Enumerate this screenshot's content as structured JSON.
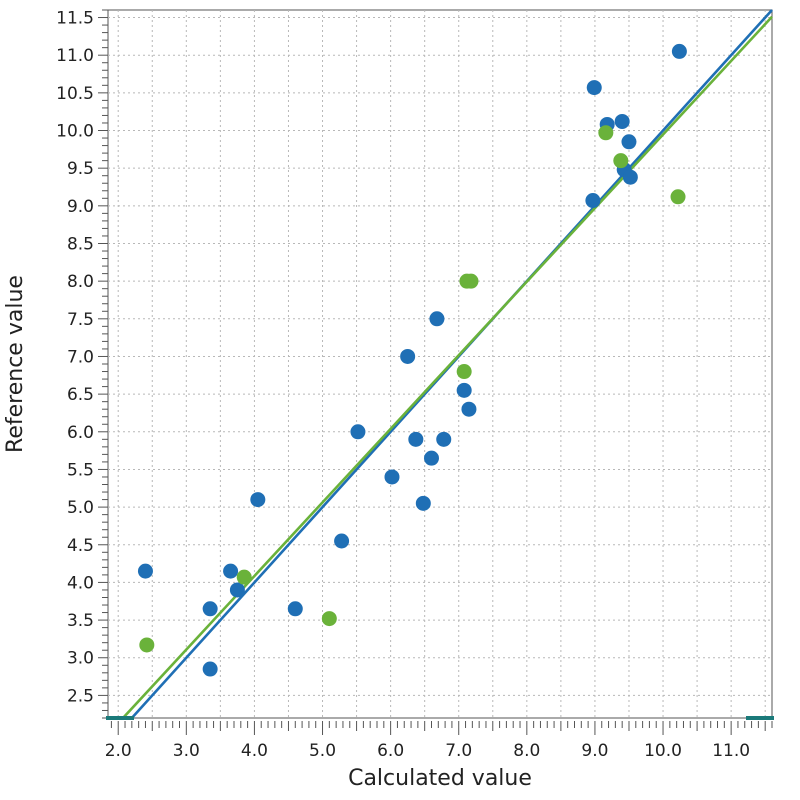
{
  "chart_data": {
    "type": "scatter",
    "title": "",
    "xlabel": "Calculated value",
    "ylabel": "Reference value",
    "xlim": [
      1.85,
      11.6
    ],
    "ylim": [
      2.2,
      11.6
    ],
    "x_ticks": [
      "2.0",
      "3.0",
      "4.0",
      "5.0",
      "6.0",
      "7.0",
      "8.0",
      "9.0",
      "10.0",
      "11.0"
    ],
    "y_ticks": [
      "2.5",
      "3.0",
      "3.5",
      "4.0",
      "4.5",
      "5.0",
      "5.5",
      "6.0",
      "6.5",
      "7.0",
      "7.5",
      "8.0",
      "8.5",
      "9.0",
      "9.5",
      "10.0",
      "10.5",
      "11.0",
      "11.5"
    ],
    "grid": true,
    "series": [
      {
        "color": "#1f6fb5",
        "points": [
          [
            2.4,
            4.15
          ],
          [
            3.35,
            3.65
          ],
          [
            3.35,
            2.85
          ],
          [
            3.65,
            4.15
          ],
          [
            3.75,
            3.9
          ],
          [
            4.05,
            5.1
          ],
          [
            4.6,
            3.65
          ],
          [
            5.28,
            4.55
          ],
          [
            5.52,
            6.0
          ],
          [
            6.02,
            5.4
          ],
          [
            6.25,
            7.0
          ],
          [
            6.37,
            5.9
          ],
          [
            6.48,
            5.05
          ],
          [
            6.6,
            5.65
          ],
          [
            6.68,
            7.5
          ],
          [
            6.78,
            5.9
          ],
          [
            7.08,
            6.55
          ],
          [
            7.15,
            6.3
          ],
          [
            8.97,
            9.07
          ],
          [
            8.99,
            10.57
          ],
          [
            9.18,
            10.08
          ],
          [
            9.4,
            10.12
          ],
          [
            9.43,
            9.48
          ],
          [
            9.5,
            9.85
          ],
          [
            9.52,
            9.38
          ],
          [
            10.24,
            11.05
          ]
        ],
        "fit_line": [
          [
            2.2,
            2.2
          ],
          [
            11.6,
            11.6
          ]
        ]
      },
      {
        "color": "#6ab23a",
        "points": [
          [
            2.42,
            3.17
          ],
          [
            3.85,
            4.07
          ],
          [
            5.1,
            3.52
          ],
          [
            7.08,
            6.8
          ],
          [
            7.12,
            8.0
          ],
          [
            7.18,
            8.0
          ],
          [
            9.16,
            9.97
          ],
          [
            9.38,
            9.6
          ],
          [
            10.22,
            9.12
          ]
        ],
        "fit_line": [
          [
            2.07,
            2.2
          ],
          [
            11.6,
            11.51
          ]
        ]
      }
    ]
  }
}
